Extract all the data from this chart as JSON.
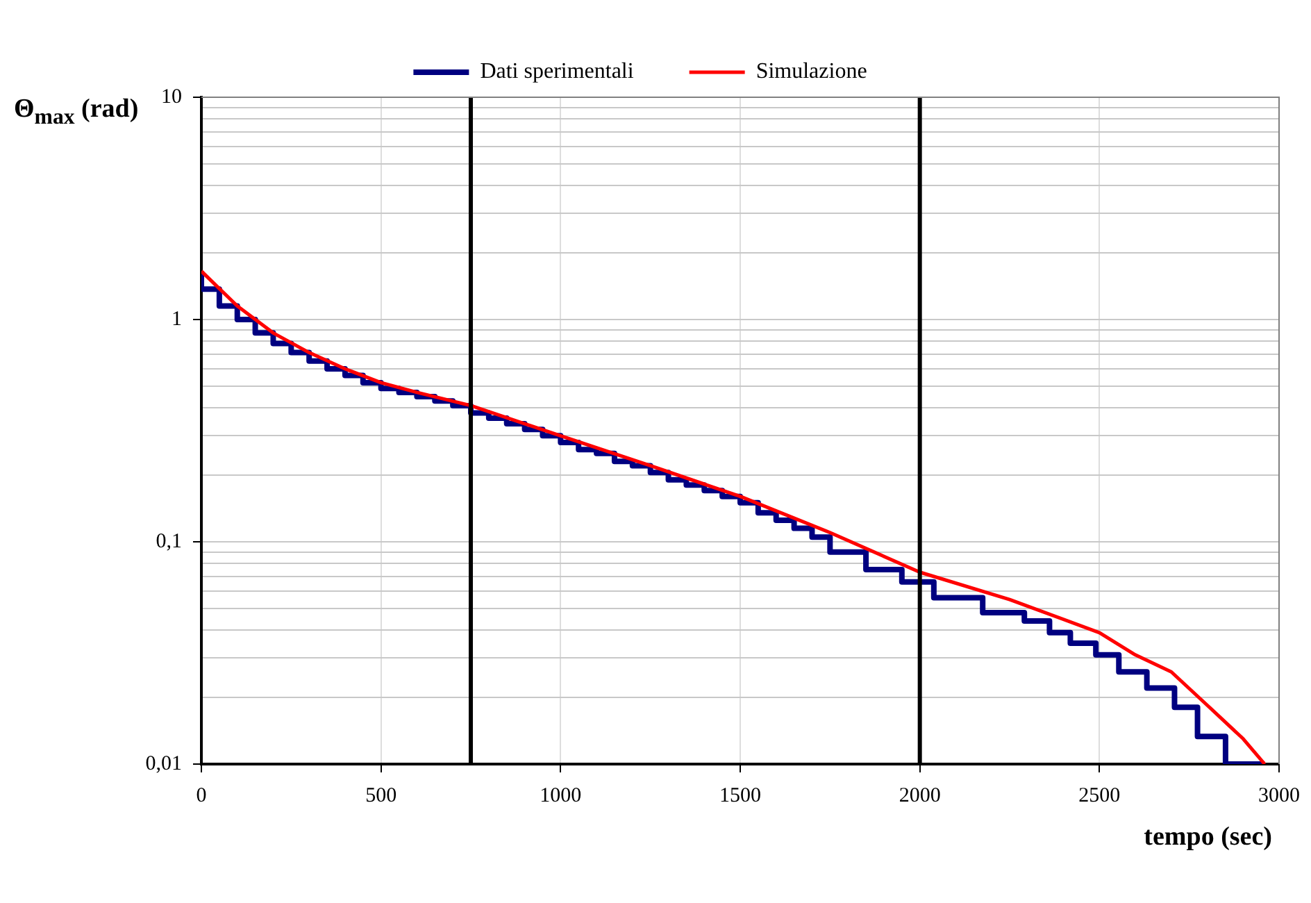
{
  "chart_data": {
    "type": "line",
    "xlabel": "tempo (sec)",
    "ylabel": "Θ$_{max}$ (rad)",
    "log": "y",
    "grid": true,
    "legend": "top",
    "marker": "none",
    "line_style": "solid",
    "xlim": [
      0,
      3000
    ],
    "xticks": [
      0,
      500,
      1000,
      1500,
      2000,
      2500,
      3000
    ],
    "ylim": [
      0.01,
      10
    ],
    "yticks": [
      {
        "value": 0.01,
        "label": "0,01"
      },
      {
        "value": 0.02,
        "label": null
      },
      {
        "value": 0.03,
        "label": null
      },
      {
        "value": 0.04,
        "label": null
      },
      {
        "value": 0.05,
        "label": null
      },
      {
        "value": 0.06,
        "label": null
      },
      {
        "value": 0.07,
        "label": null
      },
      {
        "value": 0.08,
        "label": null
      },
      {
        "value": 0.09,
        "label": null
      },
      {
        "value": 0.1,
        "label": "0,1"
      },
      {
        "value": 0.2,
        "label": null
      },
      {
        "value": 0.3,
        "label": null
      },
      {
        "value": 0.4,
        "label": null
      },
      {
        "value": 0.5,
        "label": null
      },
      {
        "value": 0.6,
        "label": null
      },
      {
        "value": 0.7,
        "label": null
      },
      {
        "value": 0.8,
        "label": null
      },
      {
        "value": 0.9,
        "label": null
      },
      {
        "value": 1,
        "label": "1"
      },
      {
        "value": 2,
        "label": null
      },
      {
        "value": 3,
        "label": null
      },
      {
        "value": 4,
        "label": null
      },
      {
        "value": 5,
        "label": null
      },
      {
        "value": 6,
        "label": null
      },
      {
        "value": 7,
        "label": null
      },
      {
        "value": 8,
        "label": null
      },
      {
        "value": 9,
        "label": null
      },
      {
        "value": 10,
        "label": "10"
      }
    ],
    "ref_lines": [
      {
        "axis": "x",
        "value": 750,
        "color": "#000000"
      },
      {
        "axis": "x",
        "value": 2000,
        "color": "#000000"
      }
    ],
    "series": [
      {
        "name": "Dati sperimentali",
        "type": "step",
        "color": "#000080",
        "x": [
          0,
          50,
          100,
          150,
          200,
          250,
          300,
          350,
          400,
          450,
          500,
          550,
          600,
          650,
          700,
          750,
          800,
          850,
          900,
          950,
          1000,
          1050,
          1100,
          1150,
          1200,
          1250,
          1300,
          1350,
          1400,
          1450,
          1500,
          1550,
          1600,
          1650,
          1700,
          1750,
          1850,
          1950,
          2039,
          2175,
          2291,
          2361,
          2419,
          2490,
          2554,
          2632,
          2709,
          2773,
          2851,
          2960
        ],
        "values": [
          1.65,
          1.37,
          1.15,
          1.0,
          0.87,
          0.78,
          0.71,
          0.65,
          0.6,
          0.56,
          0.52,
          0.49,
          0.47,
          0.45,
          0.43,
          0.41,
          0.38,
          0.36,
          0.34,
          0.32,
          0.3,
          0.28,
          0.26,
          0.25,
          0.23,
          0.22,
          0.205,
          0.19,
          0.18,
          0.17,
          0.16,
          0.15,
          0.135,
          0.125,
          0.115,
          0.105,
          0.09,
          0.075,
          0.066,
          0.056,
          0.048,
          0.044,
          0.039,
          0.035,
          0.031,
          0.026,
          0.022,
          0.018,
          0.0133,
          0.01
        ]
      },
      {
        "name": "Simulazione",
        "color": "#ff0000",
        "x": [
          0,
          100,
          200,
          300,
          400,
          500,
          600,
          750,
          1000,
          1250,
          1500,
          1750,
          2000,
          2250,
          2500,
          2600,
          2700,
          2800,
          2900,
          2960
        ],
        "values": [
          1.65,
          1.15,
          0.87,
          0.71,
          0.6,
          0.52,
          0.47,
          0.41,
          0.3,
          0.22,
          0.16,
          0.11,
          0.073,
          0.055,
          0.039,
          0.031,
          0.026,
          0.0184,
          0.013,
          0.01
        ]
      }
    ]
  }
}
